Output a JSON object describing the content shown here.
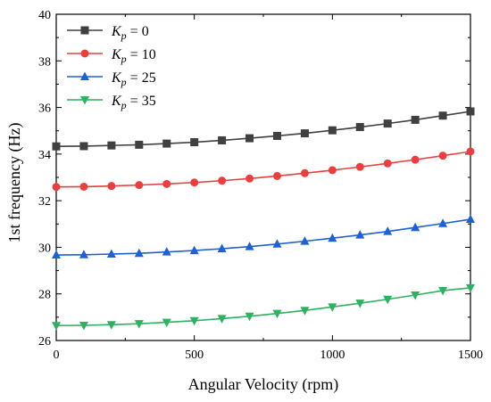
{
  "chart_data": {
    "type": "line",
    "xlabel": "Angular Velocity (rpm)",
    "ylabel": "1st frequency (Hz)",
    "xlim": [
      0,
      1500
    ],
    "ylim": [
      26,
      40
    ],
    "xticks": [
      0,
      500,
      1000,
      1500
    ],
    "yticks": [
      26,
      28,
      30,
      32,
      34,
      36,
      38,
      40
    ],
    "grid": false,
    "legend_position": "top-left",
    "x": [
      0,
      100,
      200,
      300,
      400,
      500,
      600,
      700,
      800,
      900,
      1000,
      1100,
      1200,
      1300,
      1400,
      1500
    ],
    "series": [
      {
        "name": "K_p = 0",
        "legend": {
          "symbol": "K",
          "sub": "p",
          "rest": " = 0"
        },
        "color": "#404040",
        "marker": "square",
        "values": [
          34.33,
          34.34,
          34.37,
          34.4,
          34.45,
          34.51,
          34.59,
          34.68,
          34.78,
          34.89,
          35.02,
          35.16,
          35.31,
          35.47,
          35.65,
          35.83
        ]
      },
      {
        "name": "K_p = 10",
        "legend": {
          "symbol": "K",
          "sub": "p",
          "rest": " = 10"
        },
        "color": "#e84040",
        "marker": "circle",
        "values": [
          32.59,
          32.6,
          32.63,
          32.67,
          32.72,
          32.78,
          32.86,
          32.95,
          33.06,
          33.18,
          33.31,
          33.45,
          33.6,
          33.76,
          33.93,
          34.11
        ]
      },
      {
        "name": "K_p = 25",
        "legend": {
          "symbol": "K",
          "sub": "p",
          "rest": " = 25"
        },
        "color": "#2060d0",
        "marker": "triangle-up",
        "values": [
          29.67,
          29.68,
          29.71,
          29.74,
          29.8,
          29.86,
          29.94,
          30.03,
          30.14,
          30.26,
          30.39,
          30.53,
          30.68,
          30.85,
          31.02,
          31.2
        ]
      },
      {
        "name": "K_p = 35",
        "legend": {
          "symbol": "K",
          "sub": "p",
          "rest": " = 35"
        },
        "color": "#30b060",
        "marker": "triangle-down",
        "values": [
          26.64,
          26.65,
          26.68,
          26.72,
          26.78,
          26.85,
          26.94,
          27.04,
          27.16,
          27.29,
          27.44,
          27.6,
          27.77,
          27.95,
          28.14,
          28.26
        ]
      }
    ]
  }
}
